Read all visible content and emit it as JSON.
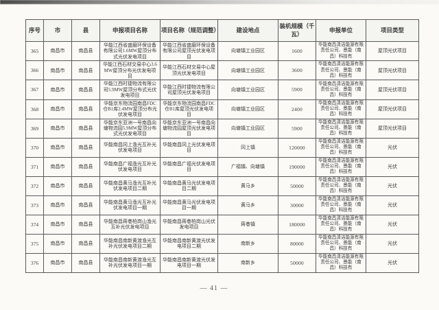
{
  "page_number": "— 41 —",
  "colors": {
    "page_background": "#fbfaf7",
    "table_border": "#585858",
    "text": "#3a3a3a",
    "scan_edge_dark": "#2d2d2d"
  },
  "table": {
    "columns": [
      "序号",
      "市",
      "县",
      "申报项目名称",
      "项目名称（规范调整）",
      "建设地点",
      "装机规模（千瓦）",
      "申报单位",
      "项目类型"
    ],
    "rows": [
      [
        "365",
        "南昌市",
        "南昌县",
        "华能江西省盛磨环保设备有限公司1.6MW屋顶分布式光伏发电项目",
        "华能江西省盛磨环保设备有限公司屋顶光伏发电项目",
        "向塘镇工业园区",
        "1600",
        "华能南昌清洁能源有限责任公司、景能（南昌）科技有",
        "屋顶光伏项目"
      ],
      [
        "366",
        "南昌市",
        "南昌县",
        "华能江西石材交易中心3.6MW屋顶分布光伏发电项目",
        "华能江西石材交易中心屋顶光伏发电项目",
        "向塘镇工业园区",
        "3600",
        "华能南昌清洁能源有限责任公司、景能（南昌）科技有",
        "屋顶光伏项目"
      ],
      [
        "367",
        "南昌市",
        "南昌县",
        "华能江西时捷物流有限公司5.9MW屋顶分布式光伏发电项目",
        "华能江西时捷物流有限公司屋顶光伏发电项目",
        "向塘镇工业园区",
        "5900",
        "华能南昌清洁能源有限责任公司、景能（南昌）科技有",
        "屋顶光伏项目"
      ],
      [
        "368",
        "南昌市",
        "南昌县",
        "华能京东物流园南昌FDC仓B1库2.4MW屋顶分布光伏发电项目",
        "华能京东物流园南昌FDC仓B1库屋顶光伏发电项目",
        "向塘镇工业园区",
        "2400",
        "华能南昌清洁能源有限责任公司、景能（南昌）科技有",
        "屋顶光伏项目"
      ],
      [
        "369",
        "南昌市",
        "南昌县",
        "华能京东亚洲一号南昌向塘物流园5.9MW屋顶分布式光伏发电项目",
        "华能京东亚洲一号南昌向塘物流园屋顶光伏发电项目",
        "向塘镇工业园区",
        "5900",
        "华能南昌清洁能源有限责任公司、景能（南昌）科技有",
        "屋顶光伏项目"
      ],
      [
        "370",
        "南昌市",
        "南昌县",
        "华能南昌冈上渔光互补光伏发电项目",
        "华能南昌冈上光伏发电项目",
        "冈上镇",
        "120000",
        "华能南昌清洁能源有限责任公司、景能（南昌）科技有",
        "光伏"
      ],
      [
        "371",
        "南昌市",
        "南昌县",
        "华能南昌广福渔光互补光伏发电项目",
        "华能南昌广福光伏发电项目",
        "广福镇、向塘镇",
        "190000",
        "华能南昌清洁能源有限责任公司、景能（南昌）科技有",
        "光伏"
      ],
      [
        "372",
        "南昌市",
        "南昌县",
        "华能南昌黄马渔光互补光伏发电项目二期",
        "华能南昌黄马光伏发电项目二期",
        "黄马乡",
        "50000",
        "华能南昌清洁能源有限责任公司、景能（南昌）科技有",
        "光伏"
      ],
      [
        "373",
        "南昌市",
        "南昌县",
        "华能南昌黄马渔光互补光伏发电项目一期",
        "华能南昌黄马光伏发电项目一期",
        "黄马乡",
        "30000",
        "华能南昌清洁能源有限责任公司、景能（南昌）科技有",
        "光伏"
      ],
      [
        "374",
        "南昌市",
        "南昌县",
        "华能南昌蒋巷柏岗山渔光互补光伏发电项目",
        "华能南昌蒋巷柏岗山光伏发电项目",
        "蒋巷镇",
        "180000",
        "华能南昌清洁能源有限责任公司、景能（南昌）科技有",
        "光伏"
      ],
      [
        "375",
        "南昌市",
        "南昌县",
        "华能南昌南新黄渡渔光互补光伏发电项目二期",
        "华能南昌南新黄渡光伏发电项目二期",
        "南新乡",
        "80000",
        "华能南昌清洁能源有限责任公司、景能（南昌）科技有",
        "光伏"
      ],
      [
        "376",
        "南昌市",
        "南昌县",
        "华能南昌南新黄渡渔光互补光伏发电项目一期",
        "华能南昌南新黄渡光伏发电项目一期",
        "南新乡",
        "50000",
        "华能南昌清洁能源有限责任公司、景能（南昌）科技有",
        "光伏"
      ]
    ]
  }
}
